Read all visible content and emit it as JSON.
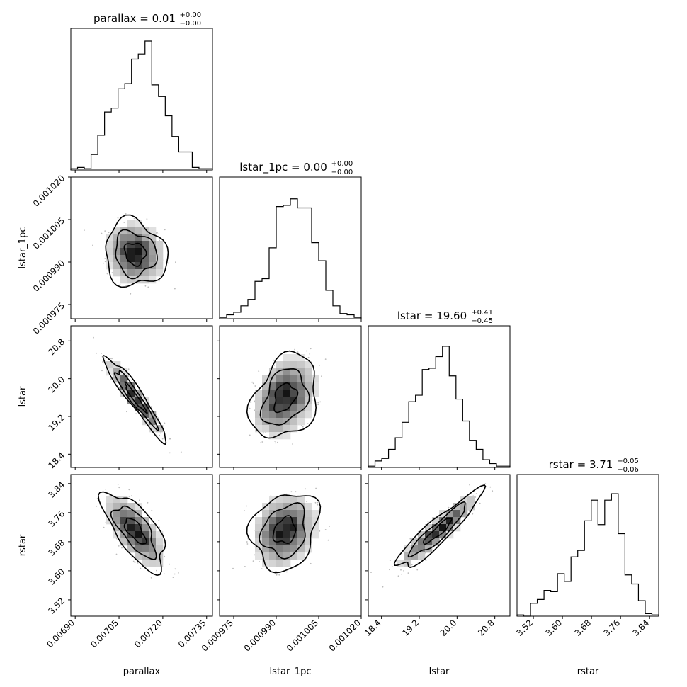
{
  "chart_data": {
    "type": "corner",
    "parameters": [
      "parallax",
      "lstar_1pc",
      "lstar",
      "rstar"
    ],
    "axis_labels": [
      "parallax",
      "lstar_1pc",
      "lstar",
      "rstar"
    ],
    "ranges": {
      "parallax": [
        0.006885,
        0.00737
      ],
      "lstar_1pc": [
        0.00097,
        0.00102
      ],
      "lstar": [
        18.12,
        21.12
      ],
      "rstar": [
        3.475,
        3.865
      ]
    },
    "ticks": {
      "parallax": {
        "values": [
          0.0069,
          0.00705,
          0.0072,
          0.00735
        ],
        "labels": [
          "0.00690",
          "0.00705",
          "0.00720",
          "0.00735"
        ]
      },
      "lstar_1pc": {
        "values": [
          0.000975,
          0.00099,
          0.001005,
          0.00102
        ],
        "labels": [
          "0.000975",
          "0.000990",
          "0.001005",
          "0.001020"
        ]
      },
      "lstar": {
        "values": [
          18.4,
          19.2,
          20.0,
          20.8
        ],
        "labels": [
          "18.4",
          "19.2",
          "20.0",
          "20.8"
        ]
      },
      "rstar": {
        "values": [
          3.52,
          3.6,
          3.68,
          3.76,
          3.84
        ],
        "labels": [
          "3.52",
          "3.60",
          "3.68",
          "3.76",
          "3.84"
        ]
      }
    },
    "titles": [
      {
        "param": "parallax",
        "text": "parallax = 0.01",
        "sup": "+0.00",
        "sub": "−0.00"
      },
      {
        "param": "lstar_1pc",
        "text": "lstar_1pc = 0.00",
        "sup": "+0.00",
        "sub": "−0.00"
      },
      {
        "param": "lstar",
        "text": "lstar = 19.60",
        "sup": "+0.41",
        "sub": "−0.45"
      },
      {
        "param": "rstar",
        "text": "rstar = 3.71",
        "sup": "+0.05",
        "sub": "−0.06"
      }
    ],
    "histograms": {
      "parallax": [
        0.01,
        0.02,
        0.01,
        0.12,
        0.27,
        0.45,
        0.48,
        0.63,
        0.67,
        0.86,
        0.9,
        1.0,
        0.66,
        0.57,
        0.42,
        0.26,
        0.14,
        0.14,
        0.02,
        0.01,
        0.01
      ],
      "lstar_1pc": [
        0.01,
        0.03,
        0.05,
        0.1,
        0.15,
        0.29,
        0.31,
        0.55,
        0.87,
        0.88,
        0.93,
        0.86,
        0.86,
        0.59,
        0.45,
        0.22,
        0.1,
        0.04,
        0.03,
        0.01
      ],
      "lstar": [
        0.01,
        0.05,
        0.07,
        0.14,
        0.23,
        0.35,
        0.51,
        0.56,
        0.76,
        0.77,
        0.86,
        0.94,
        0.71,
        0.53,
        0.36,
        0.21,
        0.14,
        0.06,
        0.03,
        0.01,
        0.01
      ],
      "rstar": [
        0.01,
        0.0,
        0.1,
        0.13,
        0.2,
        0.19,
        0.33,
        0.27,
        0.46,
        0.51,
        0.74,
        0.9,
        0.71,
        0.9,
        0.95,
        0.64,
        0.32,
        0.25,
        0.12,
        0.02,
        0.01
      ]
    },
    "pairs": [
      {
        "x": "parallax",
        "y": "lstar_1pc",
        "mean": [
          0.007105,
          0.000993
        ],
        "sd": [
          5e-05,
          5.5e-06
        ],
        "rho": -0.1
      },
      {
        "x": "parallax",
        "y": "lstar",
        "mean": [
          0.007105,
          19.6
        ],
        "sd": [
          5e-05,
          0.42
        ],
        "rho": -0.95
      },
      {
        "x": "lstar_1pc",
        "y": "lstar",
        "mean": [
          0.000993,
          19.6
        ],
        "sd": [
          5.5e-06,
          0.42
        ],
        "rho": 0.3
      },
      {
        "x": "parallax",
        "y": "rstar",
        "mean": [
          0.007105,
          3.71
        ],
        "sd": [
          5e-05,
          0.05
        ],
        "rho": -0.68
      },
      {
        "x": "lstar_1pc",
        "y": "rstar",
        "mean": [
          0.000993,
          3.71
        ],
        "sd": [
          5.5e-06,
          0.05
        ],
        "rho": 0.18
      },
      {
        "x": "lstar",
        "y": "rstar",
        "mean": [
          19.6,
          3.71
        ],
        "sd": [
          0.42,
          0.05
        ],
        "rho": 0.92
      }
    ],
    "contour_levels": [
      0.5,
      1.0,
      1.5
    ]
  }
}
